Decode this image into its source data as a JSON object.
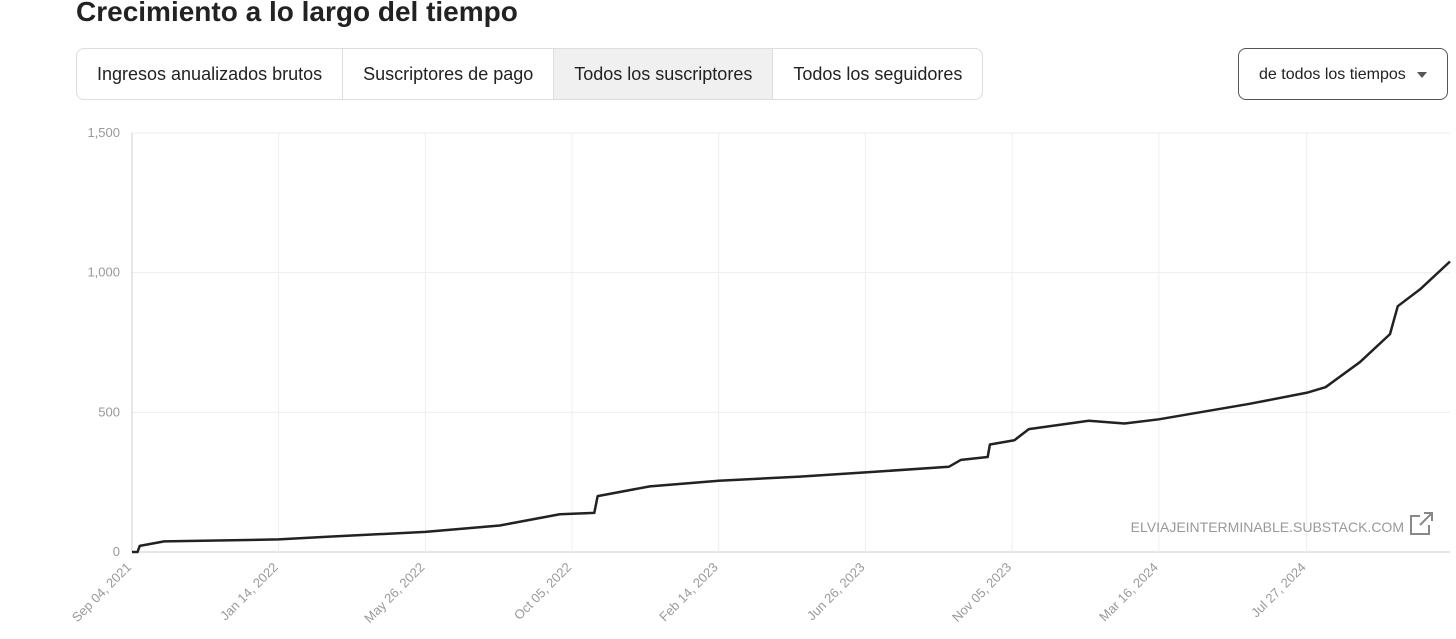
{
  "header": {
    "title": "Crecimiento a lo largo del tiempo"
  },
  "tabs": [
    "Ingresos anualizados brutos",
    "Suscriptores de pago",
    "Todos los suscriptores",
    "Todos los seguidores"
  ],
  "active_tab": 2,
  "dropdown": {
    "label": "de todos los tiempos"
  },
  "chart_data": {
    "type": "line",
    "watermark": "ELVIAJEINTERMINABLE.SUBSTACK.COM",
    "x": [
      "2021-09-04",
      "2021-09-09",
      "2021-09-11",
      "2021-10-03",
      "2022-01-14",
      "2022-03-01",
      "2022-05-26",
      "2022-08-01",
      "2022-09-24",
      "2022-10-25",
      "2022-10-28",
      "2022-12-14",
      "2023-02-14",
      "2023-04-28",
      "2023-06-26",
      "2023-09-09",
      "2023-09-20",
      "2023-10-14",
      "2023-10-16",
      "2023-11-07",
      "2023-11-20",
      "2024-01-13",
      "2024-02-14",
      "2024-03-16",
      "2024-06-05",
      "2024-07-27",
      "2024-08-13",
      "2024-09-13",
      "2024-10-10",
      "2024-10-17",
      "2024-11-06",
      "2024-12-03"
    ],
    "series": [
      {
        "name": "Todos los suscriptores",
        "color": "#222222",
        "values": [
          0,
          0,
          22,
          38,
          45,
          55,
          72,
          95,
          135,
          140,
          200,
          235,
          255,
          270,
          285,
          305,
          330,
          340,
          385,
          400,
          440,
          470,
          460,
          475,
          530,
          570,
          590,
          680,
          780,
          880,
          940,
          1040
        ]
      }
    ],
    "xlim": [
      "2021-09-04",
      "2024-12-03"
    ],
    "xticks": [
      {
        "value": "2021-09-04",
        "label": "Sep 04, 2021"
      },
      {
        "value": "2022-01-14",
        "label": "Jan 14, 2022"
      },
      {
        "value": "2022-05-26",
        "label": "May 26, 2022"
      },
      {
        "value": "2022-10-05",
        "label": "Oct 05, 2022"
      },
      {
        "value": "2023-02-14",
        "label": "Feb 14, 2023"
      },
      {
        "value": "2023-06-26",
        "label": "Jun 26, 2023"
      },
      {
        "value": "2023-11-05",
        "label": "Nov 05, 2023"
      },
      {
        "value": "2024-03-16",
        "label": "Mar 16, 2024"
      },
      {
        "value": "2024-07-27",
        "label": "Jul 27, 2024"
      }
    ],
    "ylim": [
      0,
      1500
    ],
    "yticks": [
      0,
      500,
      {
        "value": 1000,
        "label": "1,000"
      },
      {
        "value": 1500,
        "label": "1,500"
      }
    ],
    "grid": true
  }
}
